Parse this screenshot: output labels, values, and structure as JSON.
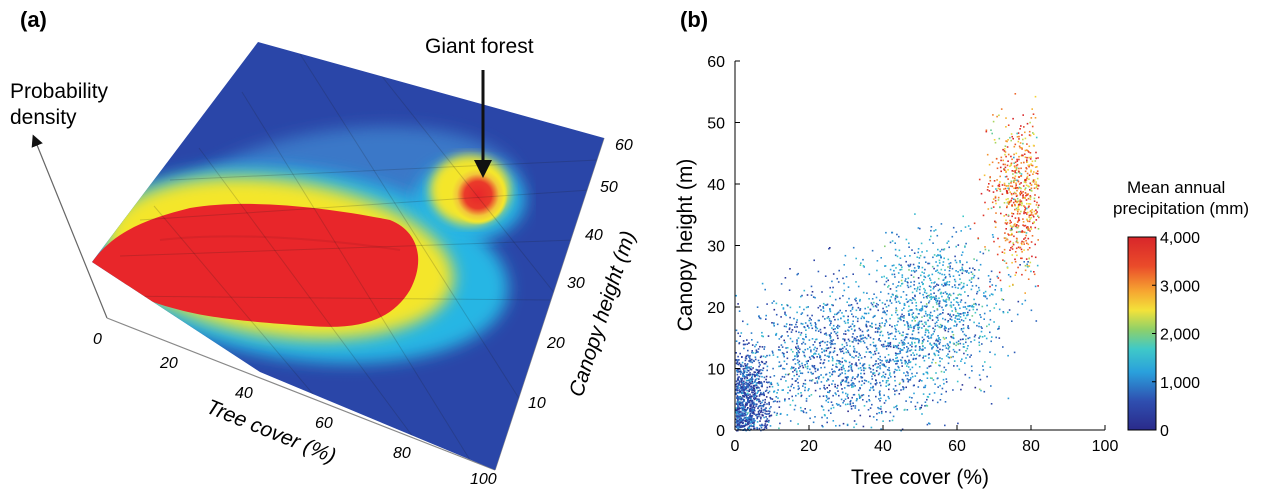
{
  "chart_data": [
    {
      "panel": "(a)",
      "type": "surface",
      "zlabel": "Probability density",
      "xlabel": "Tree cover (%)",
      "ylabel": "Canopy height (m)",
      "xticks": [
        "0",
        "20",
        "40",
        "60",
        "80",
        "100"
      ],
      "yticks": [
        "10",
        "20",
        "30",
        "40",
        "50",
        "60"
      ],
      "annotation": "Giant forest",
      "colors": {
        "low": "#2a46a8",
        "mid": "#f4e62c",
        "high": "#e8262a",
        "cyan": "#28b6e4"
      }
    },
    {
      "panel": "(b)",
      "type": "scatter",
      "xlabel": "Tree cover (%)",
      "ylabel": "Canopy height (m)",
      "xlim": [
        0,
        100
      ],
      "ylim": [
        0,
        60
      ],
      "xticks": [
        "0",
        "20",
        "40",
        "60",
        "80",
        "100"
      ],
      "yticks": [
        "0",
        "10",
        "20",
        "30",
        "40",
        "50",
        "60"
      ],
      "clusters": [
        {
          "x_center": 3,
          "y_center": 5,
          "x_spread": 3,
          "y_spread": 4,
          "precip_mm": 600
        },
        {
          "x_center": 30,
          "y_center": 12,
          "x_spread": 14,
          "y_spread": 6,
          "precip_mm": 900
        },
        {
          "x_center": 55,
          "y_center": 20,
          "x_spread": 9,
          "y_spread": 6,
          "precip_mm": 1200
        },
        {
          "x_center": 77,
          "y_center": 38,
          "x_spread": 4,
          "y_spread": 6,
          "precip_mm": 3200
        }
      ],
      "colorbar": {
        "title_line1": "Mean annual",
        "title_line2": "precipitation (mm)",
        "ticks": [
          "0",
          "1,000",
          "2,000",
          "3,000",
          "4,000"
        ],
        "range": [
          0,
          4000
        ]
      }
    }
  ]
}
